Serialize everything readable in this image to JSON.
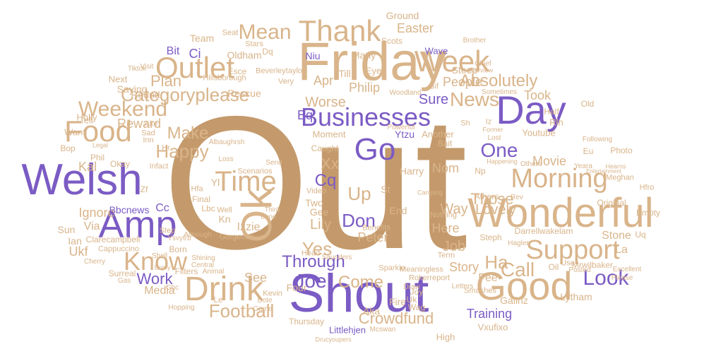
{
  "colors": {
    "primary": "#c49a6c",
    "tan": "#d9b48a",
    "purple": "#7b5bc4",
    "background": "#ffffff"
  },
  "words": {
    "out": "Out",
    "friday": "Friday",
    "shout": "Shout",
    "welsh": "Welsh",
    "wonderful": "Wonderful",
    "good": "Good",
    "day": "Day",
    "amp": "Amp",
    "ok": "Ok",
    "drink": "Drink",
    "time": "Time",
    "outlet": "Outlet",
    "food": "Food",
    "thank": "Thank",
    "week": "Week",
    "businesses": "Businesses",
    "support": "Support",
    "morning": "Morning",
    "know": "Know",
    "go": "Go",
    "categoryplease": "Categoryplease",
    "weekend": "Weekend",
    "news": "News",
    "absolutely": "Absolutely",
    "mean": "Mean",
    "happy": "Happy",
    "make": "Make",
    "look": "Look",
    "call": "Call",
    "those": "Those",
    "one": "One",
    "lovely": "Lovely",
    "through": "Through",
    "joe": "Joe",
    "come": "Come",
    "don": "Don",
    "football": "Football",
    "training": "Training",
    "crowdfund": "Crowdfund",
    "yes": "Yes",
    "work": "Work",
    "plan": "Plan",
    "reward": "Reward",
    "ha": "Ha",
    "up": "Up",
    "cq": "Cq",
    "xx": "Xx",
    "job": "Job",
    "way": "Way",
    "story": "Story",
    "people": "People",
    "easter": "Easter",
    "sure": "Sure",
    "took": "Took",
    "lily": "Lily",
    "see": "See",
    "ignore": "Ignore",
    "peter": "Peter",
    "here": "Here",
    "movie": "Movie",
    "bbcnews": "Bbcnews",
    "via": "Via",
    "bit": "Bit",
    "ci": "Ci",
    "steep": "Steep",
    "bq": "Bq",
    "apr": "Apr",
    "worse": "Worse",
    "philip": "Philip",
    "nom": "Nom",
    "fee": "Fee",
    "ukf": "Ukf",
    "kal": "Kal",
    "cc": "Cc",
    "sun": "Sun",
    "ian": "Ian",
    "media": "Media",
    "la": "La",
    "stone": "Stone",
    "gaiinz": "Gaiinz",
    "lytham": "Lytham",
    "four": "Four",
    "fire": "Fire",
    "aka": "Aka",
    "vxufixo": "Vxufixo",
    "littlehjen": "Littlehjen",
    "izzie": "Izzie",
    "kn": "Kn",
    "yl": "Yl",
    "gee": "Gee",
    "two": "Two",
    "end": "End",
    "st": "St",
    "harry": "Harry",
    "ytzu": "Ytzu",
    "another": "Another",
    "oldham": "Oldham",
    "team": "Team",
    "ground": "Ground",
    "scots": "Scots",
    "wave": "Wave",
    "niu": "Niu",
    "many": "Many",
    "till": "Till",
    "eye": "Eye",
    "round": "Round",
    "saying": "Saying",
    "rescue": "Rescue",
    "moment": "Moment",
    "esce": "Esce",
    "hillsborough": "Hillsborough",
    "beverleytaylo": "Beverleytaylo",
    "youtube": "Youtube",
    "half": "Half",
    "rln": "Rln",
    "old": "Old",
    "eu": "Eu",
    "photo": "Photo",
    "uq": "Uq",
    "original": "Original",
    "empty": "Empty",
    "darrellwakelam": "Darrellwakelam",
    "steph": "Steph",
    "athers": "Athers",
    "np": "Np",
    "mrwilbaker": "Mrwilbaker",
    "oil": "Oil",
    "excellent": "Excellent",
    "want": "Want",
    "tell": "Tell",
    "holly": "Holly",
    "bop": "Bop",
    "okay": "Okay",
    "zf": "Zf",
    "clarecampbell": "Clarecampbell",
    "cappuccino": "Cappuccino",
    "born": "Born",
    "filters": "Filters",
    "surreal": "Surreal",
    "step": "Step",
    "lbc": "Lbc",
    "final": "Final",
    "gorgeous": "Gorgeous",
    "ystvytrb": "Ysvytrb",
    "hfa": "Hfa",
    "le": "Le",
    "thursday": "Thursday",
    "head": "Head",
    "sparkie": "Sparkie",
    "meaningless": "Meaningless",
    "high": "High",
    "joy": "Joy",
    "uk": "Uk",
    "wag": "Wag",
    "smashes": "Smashes",
    "bait": "Bait",
    "caught": "Caught",
    "scenarios": "Scenarios",
    "infact": "Infact",
    "hr": "Hr",
    "inn": "Inn",
    "ake": "Ake",
    "sad": "Sad",
    "phil": "Phil",
    "nothing": "Nothing",
    "benefits": "Benefits",
    "video": "Video",
    "saunders": "Saunders",
    "well": "Well",
    "send": "Send",
    "kevin": "Kevin",
    "rokerreport": "Rokerreport",
    "term": "Term",
    "letters": "Letters",
    "use": "Use",
    "posted": "Posted",
    "please": "Please",
    "meghan": "Meghan",
    "hfro": "Hfro",
    "yeara": "Yeara",
    "following": "Following",
    "hagler": "Hagler",
    "powerful": "Powerful",
    "cherry": "Cherry",
    "next": "Next",
    "tiktok": "Tiktok",
    "visit": "Visit",
    "very": "Very",
    "stars": "Stars",
    "seat": "Seat",
    "dq": "Dq",
    "brother": "Brother",
    "chief": "Chief",
    "sometimes": "Sometimes",
    "gif": "Gif",
    "woodland": "Woodland",
    "interview": "Interview",
    "sh": "Sh",
    "iz": "Iz",
    "lost": "Lost",
    "draw": "Draw",
    "game": "Game",
    "dote": "Dote",
    "rev": "Rev",
    "shell": "Shell",
    "shining": "Shining",
    "central": "Central",
    "animal": "Animal",
    "ghc": "Ghc",
    "gas": "Gas",
    "hopping": "Hopping",
    "enjoy": "Enjoy",
    "although": "Although",
    "done": "Done",
    "think": "Think",
    "loss": "Loss",
    "albaughrsh": "Albaughrsh",
    "entertainment": "Entertainment",
    "others": "Others",
    "happening": "Happening",
    "camping": "Camping",
    "former": "Former",
    "legal": "Legal",
    "hearns": "Hearns",
    "mcswan": "Mcswan",
    "drucyoupers": "Drucyoupers"
  }
}
